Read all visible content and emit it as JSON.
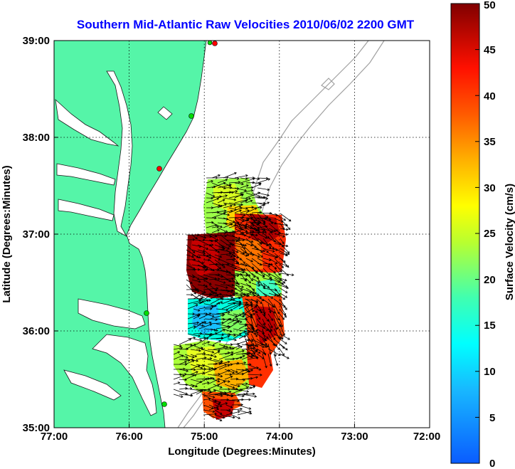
{
  "title": "Southern Mid-Atlantic Raw Velocities 2010/06/02 2200 GMT",
  "x_axis": {
    "label": "Longitude (Degrees:Minutes)",
    "ticks": [
      "77:00",
      "76:00",
      "75:00",
      "74:00",
      "73:00",
      "72:00"
    ]
  },
  "y_axis": {
    "label": "Latitude (Degrees:Minutes)",
    "ticks": [
      "39:00",
      "38:00",
      "37:00",
      "36:00",
      "35:00"
    ]
  },
  "colorbar": {
    "label": "Surface Velocity (cm/s)",
    "ticks": [
      "50",
      "45",
      "40",
      "35",
      "30",
      "25",
      "20",
      "15",
      "10",
      "5",
      "0"
    ],
    "min": 0,
    "max": 50
  },
  "map": {
    "lon_range": [
      -77,
      -72
    ],
    "lat_range": [
      35,
      39
    ],
    "grid": "dotted",
    "land_color": "#55f5a8",
    "bathymetry_color": "#a0a0a0",
    "station_colors": [
      "#00dd00",
      "#ff0000"
    ]
  }
}
